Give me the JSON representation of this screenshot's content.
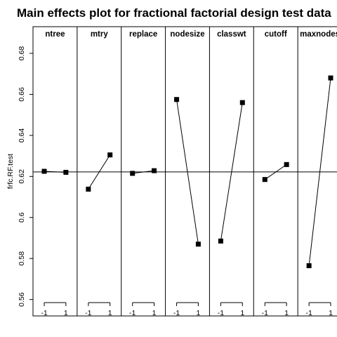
{
  "chart_data": {
    "type": "line",
    "title": "Main effects plot for fractional factorial design test data",
    "ylabel": "frfc.RF.test",
    "xlabel": "",
    "ylim": [
      0.552,
      0.693
    ],
    "yticks": [
      0.56,
      0.58,
      0.6,
      0.62,
      0.64,
      0.66,
      0.68
    ],
    "ytick_labels": [
      "0.56",
      "0.58",
      "0.6",
      "0.62",
      "0.64",
      "0.66",
      "0.68"
    ],
    "reference_line": 0.6222,
    "levels": [
      "-1",
      "1"
    ],
    "grid": false,
    "factors": [
      {
        "name": "ntree",
        "values": [
          0.6225,
          0.622
        ]
      },
      {
        "name": "mtry",
        "values": [
          0.6138,
          0.6305
        ]
      },
      {
        "name": "replace",
        "values": [
          0.6215,
          0.6228
        ]
      },
      {
        "name": "nodesize",
        "values": [
          0.6575,
          0.587
        ]
      },
      {
        "name": "classwt",
        "values": [
          0.5885,
          0.656
        ]
      },
      {
        "name": "cutoff",
        "values": [
          0.6185,
          0.6258
        ]
      },
      {
        "name": "maxnodes",
        "values": [
          0.5765,
          0.668
        ]
      }
    ]
  }
}
